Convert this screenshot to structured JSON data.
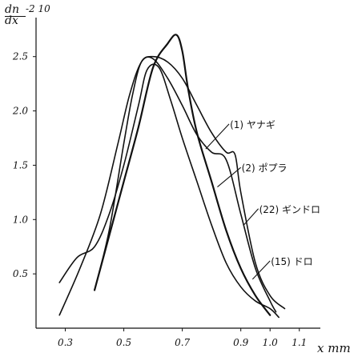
{
  "chart_data": {
    "type": "line",
    "title": "",
    "ylabel": "dn/dx",
    "ylabel_numerator": "dn",
    "ylabel_denominator": "dx",
    "ylabel_scale": "-2 10",
    "xlabel": "x mm",
    "xlim": [
      0.2,
      1.15
    ],
    "ylim": [
      0.0,
      2.8
    ],
    "x_ticks": [
      "0.3",
      "0.5",
      "0.7",
      "0.9",
      "1.0",
      "1.1"
    ],
    "x_tick_values": [
      0.3,
      0.5,
      0.7,
      0.9,
      1.0,
      1.1
    ],
    "y_ticks": [
      "0.5",
      "1.0",
      "1.5",
      "2.0",
      "2.5"
    ],
    "y_tick_values": [
      0.5,
      1.0,
      1.5,
      2.0,
      2.5
    ],
    "grid": false,
    "series": [
      {
        "name": "(1) ヤナギ",
        "x": [
          0.4,
          0.45,
          0.5,
          0.55,
          0.6,
          0.65,
          0.68,
          0.7,
          0.72,
          0.75,
          0.8,
          0.85,
          0.9,
          0.95,
          1.0
        ],
        "y": [
          0.35,
          0.85,
          1.35,
          1.85,
          2.4,
          2.62,
          2.7,
          2.55,
          2.2,
          1.8,
          1.35,
          0.9,
          0.55,
          0.3,
          0.12
        ]
      },
      {
        "name": "(2) ポプラ",
        "x": [
          0.28,
          0.35,
          0.42,
          0.48,
          0.52,
          0.56,
          0.6,
          0.65,
          0.7,
          0.75,
          0.8,
          0.85,
          0.9,
          0.95,
          1.0,
          1.02
        ],
        "y": [
          0.12,
          0.55,
          1.05,
          1.7,
          2.15,
          2.45,
          2.48,
          2.3,
          2.05,
          1.78,
          1.62,
          1.55,
          1.05,
          0.55,
          0.25,
          0.15
        ]
      },
      {
        "name": "(22) ギンドロ",
        "x": [
          0.4,
          0.45,
          0.5,
          0.53,
          0.56,
          0.6,
          0.65,
          0.7,
          0.75,
          0.8,
          0.85,
          0.88,
          0.9,
          0.95,
          1.0,
          1.05
        ],
        "y": [
          0.35,
          0.9,
          1.7,
          2.15,
          2.45,
          2.5,
          2.45,
          2.3,
          2.05,
          1.8,
          1.62,
          1.6,
          1.25,
          0.6,
          0.3,
          0.18
        ]
      },
      {
        "name": "(15) ドロ",
        "x": [
          0.28,
          0.34,
          0.4,
          0.45,
          0.5,
          0.55,
          0.58,
          0.62,
          0.66,
          0.7,
          0.75,
          0.8,
          0.85,
          0.9,
          0.95,
          1.0,
          1.03
        ],
        "y": [
          0.42,
          0.65,
          0.75,
          1.05,
          1.5,
          2.05,
          2.38,
          2.4,
          2.1,
          1.75,
          1.35,
          0.95,
          0.6,
          0.38,
          0.25,
          0.18,
          0.1
        ]
      }
    ],
    "label_anchors": [
      {
        "series": 0,
        "text_x": 0.86,
        "text_y": 1.88,
        "point_x": 0.78,
        "point_y": 1.65
      },
      {
        "series": 1,
        "text_x": 0.9,
        "text_y": 1.48,
        "point_x": 0.82,
        "point_y": 1.3
      },
      {
        "series": 2,
        "text_x": 0.96,
        "text_y": 1.1,
        "point_x": 0.91,
        "point_y": 0.95
      },
      {
        "series": 3,
        "text_x": 1.0,
        "text_y": 0.62,
        "point_x": 0.94,
        "point_y": 0.45
      }
    ],
    "line_color": "#111111"
  }
}
